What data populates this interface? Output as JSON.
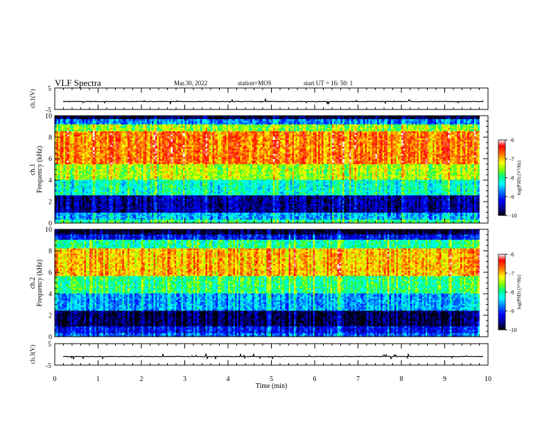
{
  "header": {
    "title": "VLF Spectra",
    "date": "Mar.30, 2022",
    "station": "station=MOS",
    "start": "start  UT =   16: 50: 1"
  },
  "chart_data": [
    {
      "type": "line",
      "panel": "ch1-voltage",
      "ylabel": "ch.1(V)",
      "ylim": [
        -5,
        5
      ],
      "ytick_labels": [
        "5",
        "-5"
      ],
      "series": [
        {
          "description_level": -1.3,
          "values_approx": "flat near -1.3 V with small noise spikes"
        }
      ],
      "x_range_min": [
        0,
        10
      ]
    },
    {
      "type": "heatmap",
      "panel": "ch1-spectrogram",
      "ylabel": "ch.1\nFrequency (kHz)",
      "ylim": [
        0,
        10
      ],
      "ytick_labels": [
        "0",
        "2",
        "4",
        "6",
        "8",
        "10"
      ],
      "x_range_min": [
        0,
        9.8
      ],
      "colorbar": {
        "label": "log(PSD) (V²/Hz)",
        "range": [
          -10,
          -6
        ],
        "tick_labels": [
          "-6",
          "-7",
          "-8",
          "-9",
          "-10"
        ]
      },
      "bands_khz": [
        {
          "from": 0.0,
          "to": 0.3,
          "level": -8.0
        },
        {
          "from": 0.3,
          "to": 1.0,
          "level": -8.6
        },
        {
          "from": 1.0,
          "to": 2.6,
          "level": -9.6
        },
        {
          "from": 2.6,
          "to": 4.0,
          "level": -8.2
        },
        {
          "from": 4.0,
          "to": 5.5,
          "level": -7.5
        },
        {
          "from": 5.5,
          "to": 8.6,
          "level": -6.8
        },
        {
          "from": 8.6,
          "to": 9.2,
          "level": -7.6
        },
        {
          "from": 9.2,
          "to": 9.6,
          "level": -8.8
        },
        {
          "from": 9.6,
          "to": 10.0,
          "level": -9.9
        }
      ]
    },
    {
      "type": "heatmap",
      "panel": "ch2-spectrogram",
      "ylabel": "ch.2\nFrequency (kHz)",
      "ylim": [
        0,
        10
      ],
      "ytick_labels": [
        "0",
        "2",
        "4",
        "6",
        "8",
        "10"
      ],
      "x_range_min": [
        0,
        9.8
      ],
      "colorbar": {
        "label": "log(PSD) (V²/Hz)",
        "range": [
          -10,
          -6
        ],
        "tick_labels": [
          "-6",
          "-7",
          "-8",
          "-9",
          "-10"
        ]
      },
      "bands_khz": [
        {
          "from": 0.0,
          "to": 0.3,
          "level": -8.8
        },
        {
          "from": 0.3,
          "to": 0.9,
          "level": -9.2
        },
        {
          "from": 0.9,
          "to": 2.4,
          "level": -9.8
        },
        {
          "from": 2.4,
          "to": 4.0,
          "level": -8.6
        },
        {
          "from": 4.0,
          "to": 5.6,
          "level": -7.9
        },
        {
          "from": 5.6,
          "to": 8.2,
          "level": -7.0
        },
        {
          "from": 8.2,
          "to": 9.0,
          "level": -8.0
        },
        {
          "from": 9.0,
          "to": 9.5,
          "level": -9.2
        },
        {
          "from": 9.5,
          "to": 10.0,
          "level": -9.9
        }
      ]
    },
    {
      "type": "line",
      "panel": "ch3-voltage",
      "ylabel": "ch.3(V)",
      "ylim": [
        -5,
        5
      ],
      "ytick_labels": [
        "5",
        "-5"
      ],
      "series": [
        {
          "description_level": -1.0,
          "values_approx": "flat near -1.0 V"
        }
      ],
      "x_range_min": [
        0,
        10
      ]
    }
  ],
  "xaxis": {
    "label": "Time  (min)",
    "range": [
      0,
      10
    ],
    "tick_labels": [
      "0",
      "1",
      "2",
      "3",
      "4",
      "5",
      "6",
      "7",
      "8",
      "9",
      "10"
    ]
  },
  "colors": {
    "colormap": [
      "#000000",
      "#00007f",
      "#0000ff",
      "#0080ff",
      "#00ffff",
      "#00ff80",
      "#80ff00",
      "#ffff00",
      "#ff8000",
      "#ff0000",
      "#ffffff"
    ]
  }
}
